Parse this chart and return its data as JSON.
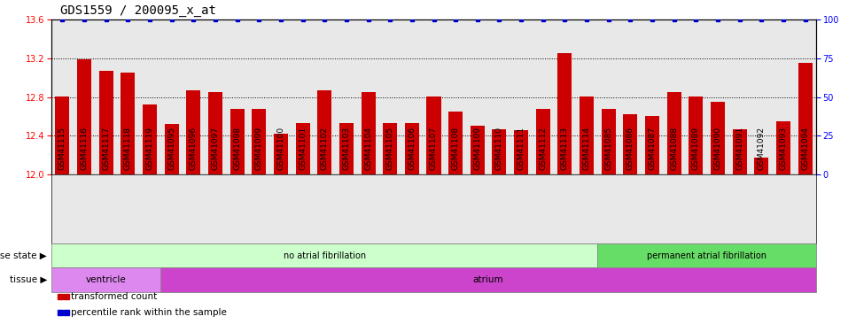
{
  "title": "GDS1559 / 200095_x_at",
  "samples": [
    "GSM41115",
    "GSM41116",
    "GSM41117",
    "GSM41118",
    "GSM41119",
    "GSM41095",
    "GSM41096",
    "GSM41097",
    "GSM41098",
    "GSM41099",
    "GSM41100",
    "GSM41101",
    "GSM41102",
    "GSM41103",
    "GSM41104",
    "GSM41105",
    "GSM41106",
    "GSM41107",
    "GSM41108",
    "GSM41109",
    "GSM41110",
    "GSM41111",
    "GSM41112",
    "GSM41113",
    "GSM41114",
    "GSM41085",
    "GSM41086",
    "GSM41087",
    "GSM41088",
    "GSM41089",
    "GSM41090",
    "GSM41091",
    "GSM41092",
    "GSM41093",
    "GSM41094"
  ],
  "bar_values": [
    12.8,
    13.19,
    13.07,
    13.05,
    12.72,
    12.52,
    12.87,
    12.85,
    12.68,
    12.68,
    12.42,
    12.53,
    12.87,
    12.53,
    12.85,
    12.53,
    12.53,
    12.8,
    12.65,
    12.5,
    12.47,
    12.46,
    12.68,
    13.25,
    12.8,
    12.68,
    12.62,
    12.6,
    12.85,
    12.8,
    12.75,
    12.47,
    12.17,
    12.55,
    13.15
  ],
  "percentile_values": [
    100,
    100,
    100,
    100,
    100,
    100,
    100,
    100,
    100,
    100,
    100,
    100,
    100,
    100,
    100,
    100,
    100,
    100,
    100,
    100,
    100,
    100,
    100,
    100,
    100,
    100,
    100,
    100,
    100,
    100,
    100,
    100,
    100,
    100,
    100
  ],
  "bar_color": "#cc0000",
  "percentile_color": "#0000cc",
  "ylim": [
    12.0,
    13.6
  ],
  "y_ticks": [
    12.0,
    12.4,
    12.8,
    13.2,
    13.6
  ],
  "y_right_ticks": [
    0,
    25,
    50,
    75,
    100
  ],
  "dotted_lines": [
    12.4,
    12.8,
    13.2
  ],
  "disease_state_groups": [
    {
      "label": "no atrial fibrillation",
      "start": 0,
      "end": 24,
      "color": "#ccffcc"
    },
    {
      "label": "permanent atrial fibrillation",
      "start": 25,
      "end": 34,
      "color": "#66dd66"
    }
  ],
  "tissue_groups": [
    {
      "label": "ventricle",
      "start": 0,
      "end": 4,
      "color": "#dd88ee"
    },
    {
      "label": "atrium",
      "start": 5,
      "end": 34,
      "color": "#cc44cc"
    }
  ],
  "disease_state_label": "disease state",
  "tissue_label": "tissue",
  "legend_items": [
    {
      "label": "transformed count",
      "color": "#cc0000"
    },
    {
      "label": "percentile rank within the sample",
      "color": "#0000cc"
    }
  ],
  "bg_color": "#ffffff",
  "axis_bg_color": "#e8e8e8",
  "title_fontsize": 10,
  "tick_fontsize": 6.5,
  "bar_width": 0.65
}
